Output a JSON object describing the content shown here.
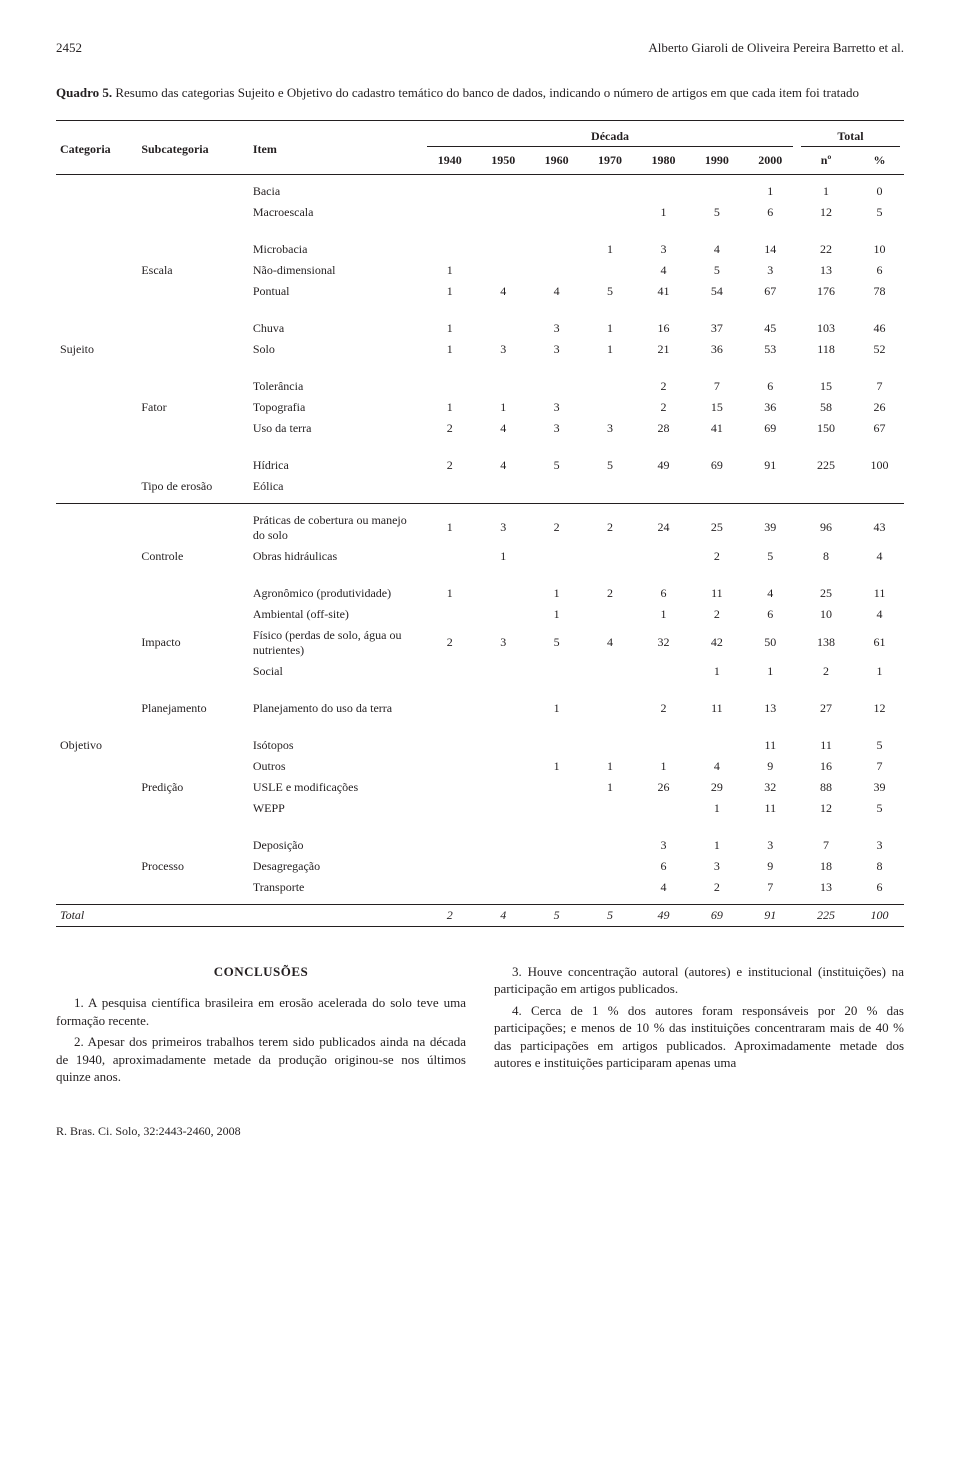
{
  "header": {
    "page_no": "2452",
    "running_head": "Alberto Giaroli de Oliveira Pereira Barretto et al."
  },
  "quadro": {
    "label": "Quadro 5.",
    "caption": "Resumo das categorias Sujeito e Objetivo do cadastro temático do banco de dados, indicando o número de artigos em que cada item foi tratado"
  },
  "table": {
    "col_headers": {
      "categoria": "Categoria",
      "subcategoria": "Subcategoria",
      "item": "Item",
      "decada_group": "Década",
      "total_group": "Total",
      "years": [
        "1940",
        "1950",
        "1960",
        "1970",
        "1980",
        "1990",
        "2000"
      ],
      "n": "nº",
      "pct": "%"
    },
    "sections": [
      {
        "categoria": "Sujeito",
        "blocks": [
          {
            "subcategoria": "",
            "rows": [
              {
                "item": "Bacia",
                "v": [
                  "",
                  "",
                  "",
                  "",
                  "",
                  "",
                  "1",
                  "1",
                  "0"
                ]
              },
              {
                "item": "Macroescala",
                "v": [
                  "",
                  "",
                  "",
                  "",
                  "1",
                  "5",
                  "6",
                  "12",
                  "5"
                ]
              }
            ]
          },
          {
            "subcategoria": "Escala",
            "rows": [
              {
                "item": "Microbacia",
                "v": [
                  "",
                  "",
                  "",
                  "1",
                  "3",
                  "4",
                  "14",
                  "22",
                  "10"
                ]
              },
              {
                "item": "Não-dimensional",
                "v": [
                  "1",
                  "",
                  "",
                  "",
                  "4",
                  "5",
                  "3",
                  "13",
                  "6"
                ]
              },
              {
                "item": "Pontual",
                "v": [
                  "1",
                  "4",
                  "4",
                  "5",
                  "41",
                  "54",
                  "67",
                  "176",
                  "78"
                ]
              }
            ]
          },
          {
            "subcategoria": "",
            "rows": [
              {
                "item": "Chuva",
                "v": [
                  "1",
                  "",
                  "3",
                  "1",
                  "16",
                  "37",
                  "45",
                  "103",
                  "46"
                ]
              },
              {
                "item": "Solo",
                "v": [
                  "1",
                  "3",
                  "3",
                  "1",
                  "21",
                  "36",
                  "53",
                  "118",
                  "52"
                ]
              }
            ]
          },
          {
            "subcategoria": "Fator",
            "rows": [
              {
                "item": "Tolerância",
                "v": [
                  "",
                  "",
                  "",
                  "",
                  "2",
                  "7",
                  "6",
                  "15",
                  "7"
                ]
              },
              {
                "item": "Topografia",
                "v": [
                  "1",
                  "1",
                  "3",
                  "",
                  "2",
                  "15",
                  "36",
                  "58",
                  "26"
                ]
              },
              {
                "item": "Uso da terra",
                "v": [
                  "2",
                  "4",
                  "3",
                  "3",
                  "28",
                  "41",
                  "69",
                  "150",
                  "67"
                ]
              }
            ]
          },
          {
            "subcategoria": "Tipo de erosão",
            "rows": [
              {
                "item": "Hídrica",
                "v": [
                  "2",
                  "4",
                  "5",
                  "5",
                  "49",
                  "69",
                  "91",
                  "225",
                  "100"
                ]
              },
              {
                "item": "Eólica",
                "v": [
                  "",
                  "",
                  "",
                  "",
                  "",
                  "",
                  "",
                  "",
                  ""
                ]
              }
            ]
          }
        ]
      },
      {
        "categoria": "Objetivo",
        "blocks": [
          {
            "subcategoria": "Controle",
            "rows": [
              {
                "item": "Práticas de cobertura ou manejo do solo",
                "v": [
                  "1",
                  "3",
                  "2",
                  "2",
                  "24",
                  "25",
                  "39",
                  "96",
                  "43"
                ]
              },
              {
                "item": "Obras hidráulicas",
                "v": [
                  "",
                  "1",
                  "",
                  "",
                  "",
                  "2",
                  "5",
                  "8",
                  "4"
                ]
              }
            ]
          },
          {
            "subcategoria": "Impacto",
            "rows": [
              {
                "item": "Agronômico (produtividade)",
                "v": [
                  "1",
                  "",
                  "1",
                  "2",
                  "6",
                  "11",
                  "4",
                  "25",
                  "11"
                ]
              },
              {
                "item": "Ambiental (off-site)",
                "v": [
                  "",
                  "",
                  "1",
                  "",
                  "1",
                  "2",
                  "6",
                  "10",
                  "4"
                ]
              },
              {
                "item": "Físico (perdas de solo, água ou nutrientes)",
                "v": [
                  "2",
                  "3",
                  "5",
                  "4",
                  "32",
                  "42",
                  "50",
                  "138",
                  "61"
                ]
              },
              {
                "item": "Social",
                "v": [
                  "",
                  "",
                  "",
                  "",
                  "",
                  "1",
                  "1",
                  "2",
                  "1"
                ]
              }
            ]
          },
          {
            "subcategoria": "Planejamento",
            "rows": [
              {
                "item": "Planejamento do uso da terra",
                "v": [
                  "",
                  "",
                  "1",
                  "",
                  "2",
                  "11",
                  "13",
                  "27",
                  "12"
                ]
              }
            ]
          },
          {
            "subcategoria": "Predição",
            "rows": [
              {
                "item": "Isótopos",
                "v": [
                  "",
                  "",
                  "",
                  "",
                  "",
                  "",
                  "11",
                  "11",
                  "5"
                ]
              },
              {
                "item": "Outros",
                "v": [
                  "",
                  "",
                  "1",
                  "1",
                  "1",
                  "4",
                  "9",
                  "16",
                  "7"
                ]
              },
              {
                "item": "USLE e modificações",
                "v": [
                  "",
                  "",
                  "",
                  "1",
                  "26",
                  "29",
                  "32",
                  "88",
                  "39"
                ]
              },
              {
                "item": "WEPP",
                "v": [
                  "",
                  "",
                  "",
                  "",
                  "",
                  "1",
                  "11",
                  "12",
                  "5"
                ]
              }
            ]
          },
          {
            "subcategoria": "Processo",
            "rows": [
              {
                "item": "Deposição",
                "v": [
                  "",
                  "",
                  "",
                  "",
                  "3",
                  "1",
                  "3",
                  "7",
                  "3"
                ]
              },
              {
                "item": "Desagregação",
                "v": [
                  "",
                  "",
                  "",
                  "",
                  "6",
                  "3",
                  "9",
                  "18",
                  "8"
                ]
              },
              {
                "item": "Transporte",
                "v": [
                  "",
                  "",
                  "",
                  "",
                  "4",
                  "2",
                  "7",
                  "13",
                  "6"
                ]
              }
            ]
          }
        ]
      }
    ],
    "total_row": {
      "label": "Total",
      "v": [
        "2",
        "4",
        "5",
        "5",
        "49",
        "69",
        "91",
        "225",
        "100"
      ]
    }
  },
  "conclusoes": {
    "title": "CONCLUSÕES",
    "left": [
      "1. A pesquisa científica brasileira em erosão acelerada do solo teve uma formação recente.",
      "2. Apesar dos primeiros trabalhos terem sido publicados ainda na década de 1940, aproximadamente metade da produção originou-se nos últimos quinze anos."
    ],
    "right": [
      "3. Houve concentração autoral (autores) e institucional (instituições) na participação em artigos publicados.",
      "4. Cerca de 1 % dos autores foram responsáveis por 20 % das participações; e menos de 10 % das instituições concentraram mais de 40 % das participações em artigos publicados. Aproximadamente metade dos autores e instituições participaram apenas uma"
    ]
  },
  "footer": "R. Bras. Ci. Solo, 32:2443-2460, 2008"
}
